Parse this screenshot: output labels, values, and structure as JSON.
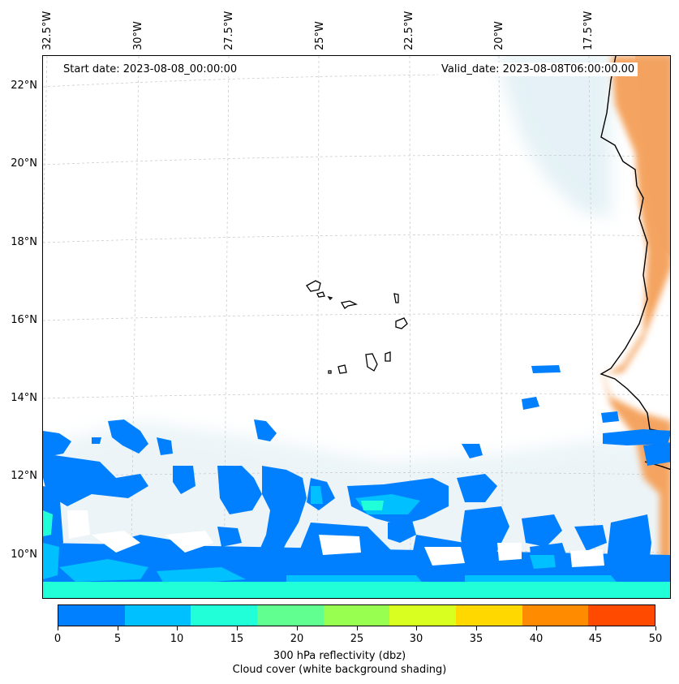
{
  "map": {
    "start_date": "Start date: 2023-08-08_00:00:00",
    "valid_date": "Valid_date: 2023-08-08T06:00:00.00",
    "lon_labels": [
      "32.5°W",
      "30°W",
      "27.5°W",
      "25°W",
      "22.5°W",
      "20°W",
      "17.5°W"
    ],
    "lat_labels": [
      "22°N",
      "20°N",
      "18°N",
      "16°N",
      "14°N",
      "12°N",
      "10°N"
    ],
    "land_color": "#f4a460",
    "coastline_color": "#000000",
    "cloud_shading_color": "#d6eaf0",
    "gridlines": true
  },
  "colorbar": {
    "ticks": [
      "0",
      "5",
      "10",
      "15",
      "20",
      "25",
      "30",
      "35",
      "40",
      "45",
      "50"
    ],
    "colors": [
      "#0080ff",
      "#00c0ff",
      "#20ffd8",
      "#60ff90",
      "#98ff50",
      "#d8ff20",
      "#ffd800",
      "#ff8c00",
      "#ff4a00"
    ],
    "label": "300 hPa reflectivity (dbz)",
    "sublabel": "Cloud cover (white background shading)"
  }
}
